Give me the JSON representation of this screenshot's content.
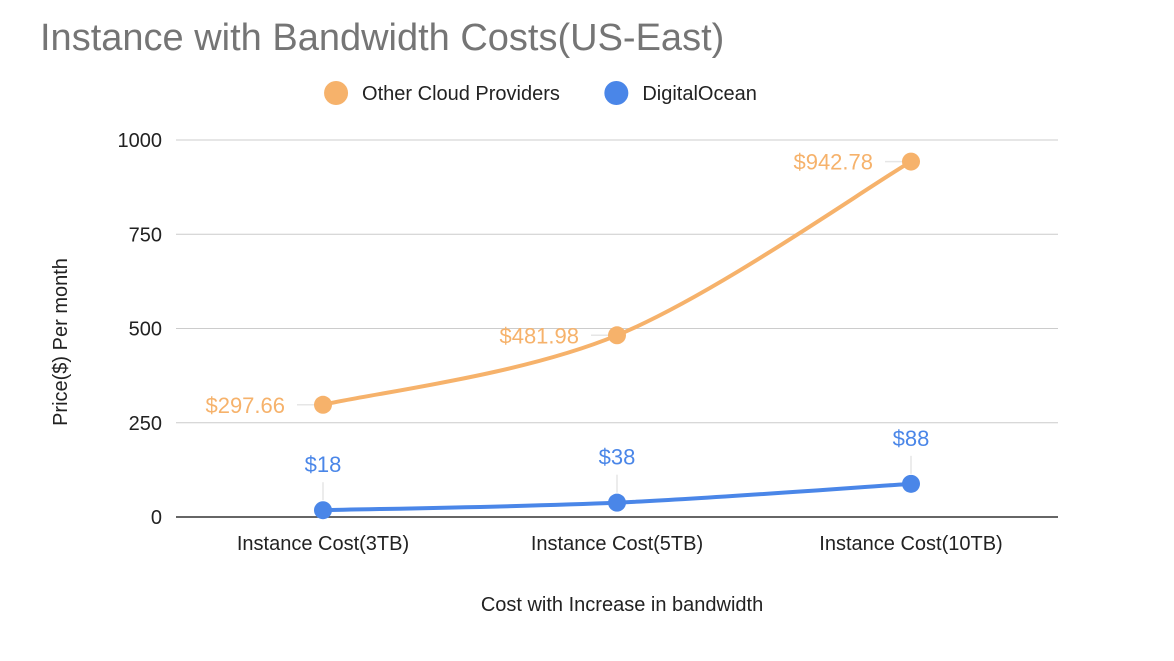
{
  "chart_data": {
    "type": "line",
    "title": "Instance with Bandwidth Costs(US-East)",
    "xlabel": "Cost with Increase in bandwidth",
    "ylabel": "Price($) Per month",
    "categories": [
      "Instance Cost(3TB)",
      "Instance Cost(5TB)",
      "Instance Cost(10TB)"
    ],
    "yticks": [
      0,
      250,
      500,
      750,
      1000
    ],
    "ylim": [
      0,
      1000
    ],
    "grid": true,
    "legend_position": "top",
    "smooth": true,
    "series": [
      {
        "name": "Other Cloud Providers",
        "color": "#F6B26B",
        "values": [
          297.66,
          481.98,
          942.78
        ],
        "labels": [
          "$297.66",
          "$481.98",
          "$942.78"
        ],
        "label_position": "left"
      },
      {
        "name": "DigitalOcean",
        "color": "#4A86E8",
        "values": [
          18,
          38,
          88
        ],
        "labels": [
          "$18",
          "$38",
          "$88"
        ],
        "label_position": "above"
      }
    ],
    "colors": {
      "title": "#757575",
      "text": "#222222",
      "grid": "#cccccc",
      "axis": "#333333"
    }
  }
}
